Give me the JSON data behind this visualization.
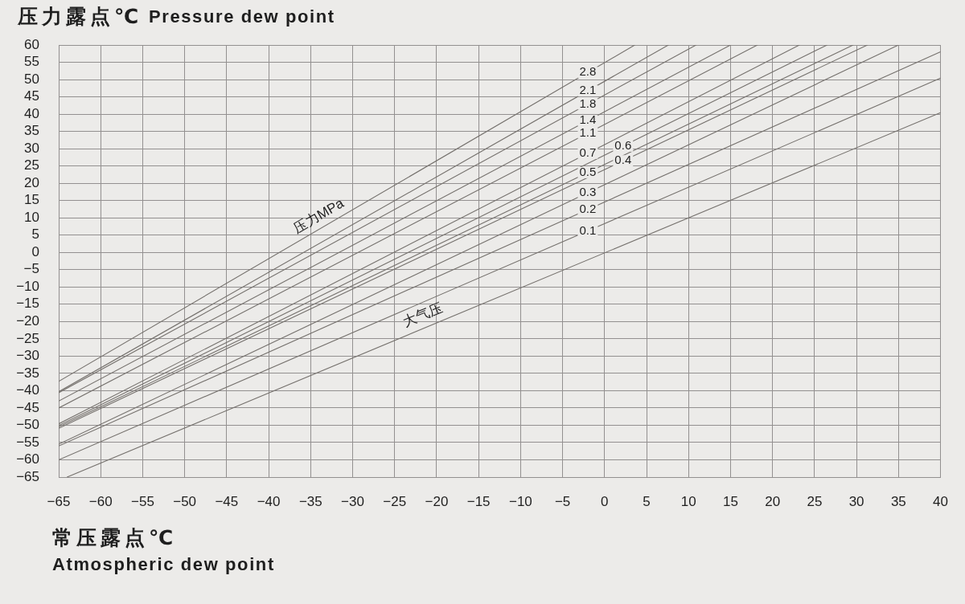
{
  "chart_data": {
    "type": "line",
    "xlabel": "常压露点℃\nAtmospheric dew point",
    "ylabel": "压力露点℃ Pressure dew point",
    "xlim": [
      -65,
      40
    ],
    "ylim": [
      -65,
      60
    ],
    "xticks": [
      {
        "value": -65,
        "label": "−65"
      },
      {
        "value": -60,
        "label": "−60"
      },
      {
        "value": -55,
        "label": "−55"
      },
      {
        "value": -50,
        "label": "−50"
      },
      {
        "value": -45,
        "label": "−45"
      },
      {
        "value": -40,
        "label": "−40"
      },
      {
        "value": -35,
        "label": "−35"
      },
      {
        "value": -30,
        "label": "−30"
      },
      {
        "value": -25,
        "label": "−25"
      },
      {
        "value": -20,
        "label": "−20"
      },
      {
        "value": -15,
        "label": "−15"
      },
      {
        "value": -10,
        "label": "−10"
      },
      {
        "value": -5,
        "label": "−5"
      },
      0,
      5,
      10,
      15,
      20,
      25,
      30,
      35,
      40
    ],
    "yticks": [
      {
        "value": -65,
        "label": "−65"
      },
      {
        "value": -60,
        "label": "−60"
      },
      {
        "value": -55,
        "label": "−55"
      },
      {
        "value": -50,
        "label": "−50"
      },
      {
        "value": -45,
        "label": "−45"
      },
      {
        "value": -40,
        "label": "−40"
      },
      {
        "value": -35,
        "label": "−35"
      },
      {
        "value": -30,
        "label": "−30"
      },
      {
        "value": -25,
        "label": "−25"
      },
      {
        "value": -20,
        "label": "−20"
      },
      {
        "value": -15,
        "label": "−15"
      },
      {
        "value": -10,
        "label": "−10"
      },
      {
        "value": -5,
        "label": "−5"
      },
      0,
      5,
      10,
      15,
      20,
      25,
      30,
      35,
      40,
      45,
      50,
      55,
      60
    ],
    "grid": true,
    "legend": false,
    "marker": "none",
    "line_style": "solid",
    "annotations": [
      "压力MPa",
      "大气压"
    ],
    "series": [
      {
        "name": "2.8",
        "color": "#75716d",
        "x": [
          -65,
          3.6
        ],
        "values": [
          -37.3,
          60
        ]
      },
      {
        "name": "2.1",
        "color": "#75716d",
        "x": [
          -65,
          7.6
        ],
        "values": [
          -40.3,
          60
        ]
      },
      {
        "name": "1.8",
        "color": "#75716d",
        "x": [
          -65,
          10.9
        ],
        "values": [
          -40.6,
          60
        ]
      },
      {
        "name": "1.4",
        "color": "#75716d",
        "x": [
          -65,
          15
        ],
        "values": [
          -43,
          60
        ]
      },
      {
        "name": "1.1",
        "color": "#75716d",
        "x": [
          -65,
          18.2
        ],
        "values": [
          -45,
          60
        ]
      },
      {
        "name": "0.7",
        "color": "#75716d",
        "x": [
          -65,
          23.2
        ],
        "values": [
          -49.6,
          60
        ]
      },
      {
        "name": "0.6",
        "color": "#75716d",
        "x": [
          -65,
          26.5
        ],
        "values": [
          -50.1,
          60
        ]
      },
      {
        "name": "0.5",
        "color": "#75716d",
        "x": [
          -65,
          29.6
        ],
        "values": [
          -50.5,
          60
        ]
      },
      {
        "name": "0.4",
        "color": "#75716d",
        "x": [
          -65,
          31.3
        ],
        "values": [
          -50.9,
          60
        ]
      },
      {
        "name": "0.3",
        "color": "#75716d",
        "x": [
          -65,
          35
        ],
        "values": [
          -55.5,
          60
        ]
      },
      {
        "name": "0.2",
        "color": "#75716d",
        "x": [
          -65,
          40
        ],
        "values": [
          -56,
          58
        ]
      },
      {
        "name": "0.1",
        "color": "#75716d",
        "x": [
          -65,
          40
        ],
        "values": [
          -60,
          50.4
        ]
      },
      {
        "color": "#75716d",
        "x": [
          -64,
          40
        ],
        "values": [
          -65,
          40.4
        ]
      }
    ]
  }
}
